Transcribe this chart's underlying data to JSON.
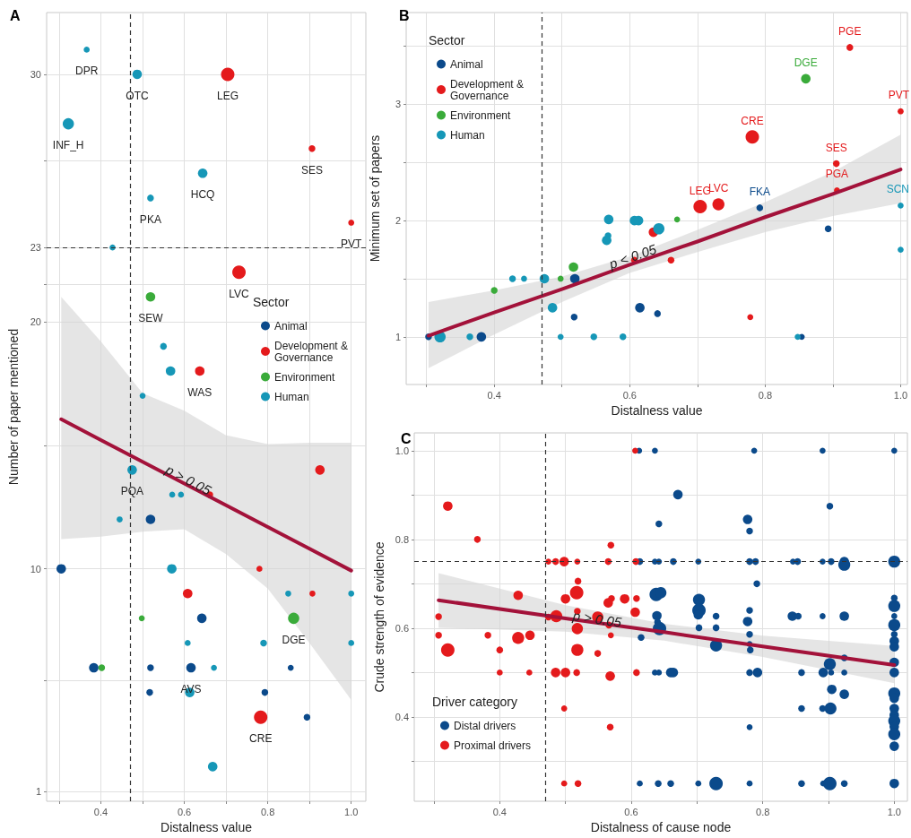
{
  "chart_data": [
    {
      "type": "bubble",
      "title": "A",
      "xlabel": "Distalness value",
      "ylabel": "Number of paper mentioned",
      "legend_title": "Sector",
      "legend": "right",
      "marker": "circle",
      "grid": true,
      "xlim": [
        0.27,
        1.035
      ],
      "xticks": [
        {
          "value": 0.3,
          "label": null
        },
        0.4,
        {
          "value": 0.5,
          "label": null
        },
        0.6,
        {
          "value": 0.7,
          "label": null
        },
        0.8,
        {
          "value": 0.9,
          "label": null
        },
        {
          "value": 1.0,
          "label": "1.0"
        }
      ],
      "ylim": [
        0.6,
        32.5
      ],
      "yticks": [
        1,
        {
          "value": 5.5,
          "label": null
        },
        10,
        {
          "value": 15,
          "label": null
        },
        20,
        {
          "value": 21.5,
          "label": null
        },
        23,
        {
          "value": 26.5,
          "label": null
        },
        30
      ],
      "series": [
        {
          "name": "Animal",
          "color": "#0b4a8b",
          "x": [
            0.305,
            0.519,
            0.642,
            0.383,
            0.519,
            0.616,
            0.855,
            0.517,
            0.793,
            0.894
          ],
          "values": [
            10,
            12,
            8,
            6,
            6,
            6,
            6,
            5,
            5,
            4
          ],
          "sizes": [
            0.5,
            0.5,
            0.5,
            0.5,
            0.25,
            0.5,
            0.2,
            0.25,
            0.25,
            0.25
          ]
        },
        {
          "name": "Development & Governance",
          "color": "#e41a1c",
          "x": [
            0.704,
            0.906,
            1.0,
            0.731,
            0.637,
            0.925,
            0.661,
            0.78,
            0.608,
            0.907,
            0.783
          ],
          "values": [
            30,
            27,
            24,
            22,
            18,
            14,
            13,
            10,
            9,
            9,
            4
          ],
          "sizes": [
            1,
            0.25,
            0.2,
            1,
            0.5,
            0.5,
            0.25,
            0.2,
            0.5,
            0.2,
            1
          ]
        },
        {
          "name": "Environment",
          "color": "#3aab3a",
          "x": [
            0.519,
            0.498,
            0.862,
            0.402
          ],
          "values": [
            21,
            8,
            8,
            6
          ],
          "sizes": [
            0.5,
            0.2,
            0.7,
            0.25
          ]
        },
        {
          "name": "Human",
          "color": "#1697b7",
          "x": [
            0.366,
            0.487,
            0.322,
            0.644,
            0.519,
            0.428,
            0.55,
            0.567,
            0.5,
            0.475,
            0.571,
            0.592,
            0.445,
            0.57,
            0.849,
            1.0,
            0.608,
            0.79,
            1.0,
            0.671,
            0.613,
            0.668
          ],
          "values": [
            31,
            30,
            28,
            26,
            25,
            23,
            19,
            18,
            17,
            14,
            13,
            13,
            12,
            10,
            9,
            9,
            7,
            7,
            7,
            6,
            5,
            2
          ],
          "sizes": [
            0.2,
            0.5,
            0.7,
            0.5,
            0.25,
            0.2,
            0.25,
            0.5,
            0.2,
            0.5,
            0.2,
            0.2,
            0.2,
            0.5,
            0.2,
            0.2,
            0.2,
            0.25,
            0.2,
            0.2,
            0.5,
            0.5
          ]
        },
        {
          "type": "line",
          "marker": "none",
          "color": "#a3123a",
          "x": [
            0.305,
            0.4,
            0.5,
            0.6,
            0.7,
            0.8,
            0.9,
            1.0
          ],
          "values": [
            16.05,
            15.21,
            14.33,
            13.45,
            12.57,
            11.69,
            10.81,
            9.93
          ],
          "lower": [
            11.2,
            11.3,
            11.5,
            11.6,
            10.6,
            9.2,
            7.0,
            4.7
          ],
          "upper": [
            21.0,
            19.2,
            17.1,
            16.4,
            15.4,
            15.05,
            15.1,
            15.1
          ]
        }
      ],
      "ref_lines": [
        {
          "axis": "x",
          "value": 0.47,
          "line_style": "dashed"
        },
        {
          "axis": "y",
          "value": 23,
          "line_style": "dashed"
        }
      ],
      "annotations": [
        {
          "text": "DPR",
          "x": 0.366,
          "y": 31
        },
        {
          "text": "OTC",
          "x": 0.487,
          "y": 30
        },
        {
          "text": "LEG",
          "x": 0.704,
          "y": 30
        },
        {
          "text": "INF_H",
          "x": 0.322,
          "y": 28
        },
        {
          "text": "SES",
          "x": 0.906,
          "y": 27
        },
        {
          "text": "HCQ",
          "x": 0.644,
          "y": 26
        },
        {
          "text": "PKA",
          "x": 0.519,
          "y": 25
        },
        {
          "text": "PVT",
          "x": 1.0,
          "y": 24
        },
        {
          "text": "LVC",
          "x": 0.731,
          "y": 22
        },
        {
          "text": "SEW",
          "x": 0.519,
          "y": 21
        },
        {
          "text": "WAS",
          "x": 0.637,
          "y": 18
        },
        {
          "text": "PQA",
          "x": 0.475,
          "y": 14
        },
        {
          "text": "DGE",
          "x": 0.862,
          "y": 8
        },
        {
          "text": "AVS",
          "x": 0.616,
          "y": 6
        },
        {
          "text": "CRE",
          "x": 0.783,
          "y": 4
        },
        {
          "text": "p > 0.05",
          "x": 0.62,
          "y": 13.28
        }
      ]
    },
    {
      "type": "bubble",
      "title": "B",
      "xlabel": "Distalness value",
      "ylabel": "Minimum set of papers",
      "legend_title": "Sector",
      "legend": "top left",
      "marker": "circle",
      "grid": true,
      "xlim": [
        0.27,
        1.01
      ],
      "xticks": [
        {
          "value": 0.3,
          "label": null
        },
        0.4,
        {
          "value": 0.5,
          "label": null
        },
        0.6,
        {
          "value": 0.7,
          "label": null
        },
        0.8,
        {
          "value": 0.9,
          "label": null
        },
        {
          "value": 1.0,
          "label": "1.0"
        }
      ],
      "ylim": [
        0.59,
        3.79
      ],
      "yticks": [
        1,
        {
          "value": 1.5,
          "label": null
        },
        2,
        {
          "value": 2.5,
          "label": null
        },
        3,
        {
          "value": 3.5,
          "label": null
        }
      ],
      "series": [
        {
          "name": "Animal",
          "color": "#0b4a8b",
          "x": [
            0.792,
            0.893,
            0.519,
            0.615,
            0.518,
            0.641,
            0.303,
            0.381,
            0.854
          ],
          "values": [
            2.11,
            1.93,
            1.5,
            1.25,
            1.17,
            1.2,
            1.0,
            1.0,
            1.0
          ],
          "sizes": [
            0.25,
            0.25,
            0.5,
            0.5,
            0.25,
            0.25,
            0.25,
            0.5,
            0.2
          ]
        },
        {
          "name": "Development & Governance",
          "color": "#e41a1c",
          "x": [
            0.925,
            1.0,
            0.781,
            0.905,
            0.906,
            0.704,
            0.731,
            0.635,
            0.607,
            0.661,
            0.778
          ],
          "values": [
            3.49,
            2.94,
            2.72,
            2.49,
            2.26,
            2.12,
            2.14,
            1.9,
            1.66,
            1.66,
            1.17
          ],
          "sizes": [
            0.25,
            0.2,
            1,
            0.25,
            0.2,
            1,
            0.8,
            0.5,
            0.25,
            0.25,
            0.2
          ]
        },
        {
          "name": "Environment",
          "color": "#3aab3a",
          "x": [
            0.86,
            0.67,
            0.517,
            0.498,
            0.4
          ],
          "values": [
            3.22,
            2.01,
            1.6,
            1.5,
            1.4
          ],
          "sizes": [
            0.5,
            0.2,
            0.5,
            0.2,
            0.25
          ]
        },
        {
          "name": "Human",
          "color": "#1697b7",
          "x": [
            1.0,
            1.0,
            0.569,
            0.607,
            0.613,
            0.568,
            0.566,
            0.643,
            0.427,
            0.444,
            0.474,
            0.486,
            0.32,
            0.364,
            0.498,
            0.547,
            0.59,
            0.848
          ],
          "values": [
            2.13,
            1.75,
            2.01,
            2.0,
            2.0,
            1.87,
            1.83,
            1.93,
            1.5,
            1.5,
            1.5,
            1.25,
            1.0,
            1.0,
            1.0,
            1.0,
            1.0,
            1.0
          ],
          "sizes": [
            0.2,
            0.2,
            0.5,
            0.5,
            0.5,
            0.25,
            0.5,
            0.7,
            0.25,
            0.2,
            0.5,
            0.5,
            0.7,
            0.25,
            0.2,
            0.25,
            0.25,
            0.2
          ]
        },
        {
          "type": "line",
          "marker": "none",
          "color": "#a3123a",
          "x": [
            0.303,
            0.4,
            0.5,
            0.6,
            0.7,
            0.8,
            0.9,
            1.0
          ],
          "values": [
            1.01,
            1.21,
            1.41,
            1.62,
            1.82,
            2.03,
            2.23,
            2.44
          ],
          "lower": [
            0.73,
            1.02,
            1.3,
            1.55,
            1.73,
            1.9,
            2.04,
            2.15
          ],
          "upper": [
            1.3,
            1.4,
            1.52,
            1.69,
            1.92,
            2.16,
            2.42,
            2.74
          ]
        }
      ],
      "ref_lines": [
        {
          "axis": "x",
          "value": 0.47,
          "line_style": "dashed"
        }
      ],
      "annotations": [
        {
          "text": "PGE",
          "x": 0.925,
          "y": 3.49
        },
        {
          "text": "DGE",
          "x": 0.86,
          "y": 3.22
        },
        {
          "text": "PVT",
          "x": 1.0,
          "y": 2.94
        },
        {
          "text": "CRE",
          "x": 0.781,
          "y": 2.72
        },
        {
          "text": "SES",
          "x": 0.905,
          "y": 2.49
        },
        {
          "text": "PGA",
          "x": 0.906,
          "y": 2.26
        },
        {
          "text": "LEG",
          "x": 0.704,
          "y": 2.12
        },
        {
          "text": "LVC",
          "x": 0.731,
          "y": 2.14
        },
        {
          "text": "FKA",
          "x": 0.792,
          "y": 2.11
        },
        {
          "text": "SCN",
          "x": 1.0,
          "y": 2.13
        },
        {
          "text": "p < 0.05",
          "x": 0.6,
          "y": 1.62
        }
      ]
    },
    {
      "type": "bubble",
      "title": "C",
      "xlabel": "Distalness of cause node",
      "ylabel": "Crude strength of evidence",
      "legend_title": "Driver category",
      "legend": "bottom left",
      "marker": "circle",
      "grid": true,
      "xlim": [
        0.27,
        1.02
      ],
      "xticks": [
        {
          "value": 0.3,
          "label": null
        },
        0.4,
        {
          "value": 0.5,
          "label": null
        },
        0.6,
        {
          "value": 0.7,
          "label": null
        },
        0.8,
        {
          "value": 0.9,
          "label": null
        },
        {
          "value": 1.0,
          "label": "1.0"
        }
      ],
      "ylim": [
        0.21,
        1.04
      ],
      "yticks": [
        {
          "value": 0.3,
          "label": null
        },
        0.4,
        {
          "value": 0.5,
          "label": null
        },
        0.6,
        {
          "value": 0.7,
          "label": null
        },
        0.8,
        {
          "value": 0.9,
          "label": null
        },
        {
          "value": 1.0,
          "label": "1.0"
        }
      ],
      "series": [
        {
          "name": "Distal drivers",
          "color": "#0b4a8b",
          "x": [
            0.612,
            0.636,
            0.787,
            0.891,
            1.0,
            0.671,
            0.902,
            0.642,
            0.777,
            0.78,
            0.613,
            0.636,
            0.642,
            0.664,
            0.702,
            0.78,
            0.789,
            0.846,
            0.853,
            0.891,
            0.904,
            0.924,
            0.924,
            1.0,
            0.791,
            0.638,
            0.645,
            0.703,
            0.703,
            0.702,
            0.729,
            0.78,
            0.845,
            0.854,
            0.891,
            0.924,
            0.639,
            0.64,
            0.643,
            0.777,
            0.703,
            0.729,
            0.615,
            0.78,
            0.729,
            0.78,
            0.781,
            0.902,
            0.924,
            0.636,
            0.642,
            0.66,
            0.664,
            0.78,
            0.792,
            0.859,
            0.892,
            0.904,
            0.924,
            1.0,
            0.905,
            0.924,
            0.859,
            0.891,
            0.903,
            0.78,
            1.0,
            1.0,
            1.0,
            1.0,
            1.0,
            1.0,
            1.0,
            1.0,
            1.0,
            1.0,
            1.0,
            1.0,
            1.0,
            1.0,
            1.0,
            1.0,
            1.0,
            0.613,
            0.641,
            0.66,
            0.702,
            0.729,
            0.78,
            0.859,
            0.892,
            0.902,
            0.924
          ],
          "values": [
            1.0,
            1.0,
            1.0,
            1.0,
            1.0,
            0.901,
            0.875,
            0.835,
            0.845,
            0.819,
            0.75,
            0.75,
            0.75,
            0.75,
            0.75,
            0.75,
            0.75,
            0.75,
            0.75,
            0.75,
            0.75,
            0.75,
            0.743,
            0.75,
            0.7,
            0.676,
            0.68,
            0.664,
            0.64,
            0.63,
            0.627,
            0.64,
            0.627,
            0.627,
            0.627,
            0.627,
            0.628,
            0.614,
            0.599,
            0.615,
            0.601,
            0.601,
            0.579,
            0.586,
            0.561,
            0.564,
            0.551,
            0.519,
            0.533,
            0.5,
            0.5,
            0.5,
            0.5,
            0.5,
            0.5,
            0.5,
            0.5,
            0.5,
            0.5,
            0.5,
            0.462,
            0.451,
            0.419,
            0.419,
            0.419,
            0.377,
            0.668,
            0.65,
            0.627,
            0.607,
            0.586,
            0.571,
            0.558,
            0.523,
            0.453,
            0.442,
            0.419,
            0.404,
            0.391,
            0.378,
            0.361,
            0.334,
            0.25,
            0.25,
            0.25,
            0.25,
            0.25,
            0.25,
            0.25,
            0.25,
            0.25,
            0.25,
            0.25
          ],
          "sizes": [
            0.2,
            0.2,
            0.2,
            0.2,
            0.2,
            0.5,
            0.25,
            0.25,
            0.5,
            0.25,
            0.25,
            0.2,
            0.2,
            0.25,
            0.2,
            0.25,
            0.25,
            0.2,
            0.25,
            0.2,
            0.25,
            0.5,
            0.8,
            0.8,
            0.25,
            1,
            0.7,
            0.8,
            1,
            0.5,
            0.25,
            0.25,
            0.5,
            0.25,
            0.2,
            0.5,
            0.5,
            0.25,
            1,
            0.5,
            0.25,
            0.25,
            0.25,
            0.25,
            0.8,
            0.2,
            0.25,
            0.8,
            0.25,
            0.2,
            0.2,
            0.5,
            0.5,
            0.25,
            0.5,
            0.25,
            0.5,
            0.2,
            0.2,
            0.5,
            0.5,
            0.5,
            0.25,
            0.25,
            0.8,
            0.2,
            0.25,
            0.8,
            0.2,
            0.8,
            0.25,
            0.5,
            0.5,
            0.5,
            0.8,
            0.5,
            0.5,
            0.5,
            0.8,
            0.5,
            0.8,
            0.5,
            0.5,
            0.2,
            0.25,
            0.25,
            0.2,
            1,
            0.2,
            0.25,
            0.2,
            1,
            0.25
          ]
        },
        {
          "name": "Proximal drivers",
          "color": "#e41a1c",
          "x": [
            0.606,
            0.321,
            0.366,
            0.569,
            0.474,
            0.485,
            0.498,
            0.518,
            0.565,
            0.607,
            0.519,
            0.428,
            0.517,
            0.5,
            0.57,
            0.565,
            0.59,
            0.608,
            0.518,
            0.606,
            0.307,
            0.486,
            0.474,
            0.549,
            0.566,
            0.518,
            0.307,
            0.382,
            0.446,
            0.428,
            0.569,
            0.321,
            0.4,
            0.518,
            0.549,
            0.4,
            0.445,
            0.485,
            0.5,
            0.517,
            0.568,
            0.608,
            0.498,
            0.568,
            0.498,
            0.519
          ],
          "values": [
            1.0,
            0.875,
            0.8,
            0.787,
            0.75,
            0.75,
            0.75,
            0.75,
            0.75,
            0.75,
            0.706,
            0.674,
            0.68,
            0.666,
            0.667,
            0.657,
            0.666,
            0.667,
            0.638,
            0.636,
            0.626,
            0.627,
            0.625,
            0.625,
            0.607,
            0.599,
            0.584,
            0.584,
            0.584,
            0.578,
            0.584,
            0.551,
            0.551,
            0.551,
            0.543,
            0.5,
            0.5,
            0.5,
            0.5,
            0.5,
            0.492,
            0.5,
            0.419,
            0.377,
            0.25,
            0.25
          ],
          "sizes": [
            0.2,
            0.5,
            0.25,
            0.25,
            0.2,
            0.25,
            0.5,
            0.2,
            0.25,
            0.25,
            0.25,
            0.5,
            1,
            0.5,
            0.25,
            0.5,
            0.5,
            0.25,
            0.25,
            0.5,
            0.25,
            0.8,
            0.25,
            0.7,
            0.25,
            0.7,
            0.25,
            0.25,
            0.5,
            0.8,
            0.2,
            1,
            0.25,
            0.8,
            0.25,
            0.2,
            0.2,
            0.5,
            0.5,
            0.25,
            0.5,
            0.25,
            0.2,
            0.25,
            0.2,
            0.25
          ]
        },
        {
          "type": "line",
          "marker": "none",
          "color": "#a3123a",
          "x": [
            0.307,
            0.5,
            0.65,
            0.8,
            1.0
          ],
          "values": [
            0.663,
            0.622,
            0.591,
            0.559,
            0.517
          ],
          "lower": [
            0.601,
            0.592,
            0.572,
            0.535,
            0.476
          ],
          "upper": [
            0.724,
            0.652,
            0.61,
            0.583,
            0.56
          ]
        }
      ],
      "ref_lines": [
        {
          "axis": "x",
          "value": 0.47,
          "line_style": "dashed"
        },
        {
          "axis": "y",
          "value": 0.75,
          "line_style": "dashed"
        }
      ],
      "annotations": [
        {
          "text": "p > 0.05",
          "x": 0.55,
          "y": 0.601
        }
      ]
    }
  ]
}
